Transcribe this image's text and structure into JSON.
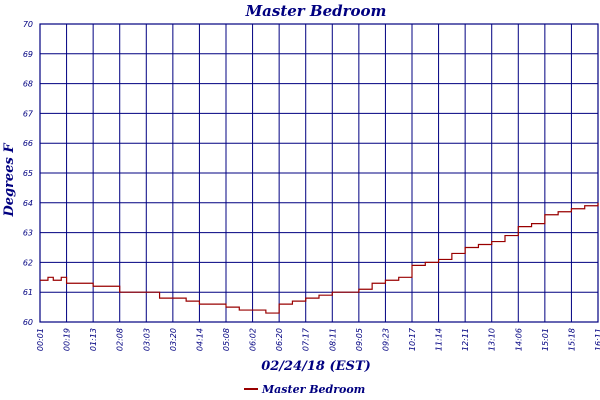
{
  "chart_data": {
    "type": "line",
    "title": "Master Bedroom",
    "xlabel": "02/24/18 (EST)",
    "ylabel": "Degrees F",
    "ylim": [
      60,
      70
    ],
    "yticks": [
      60,
      61,
      62,
      63,
      64,
      65,
      66,
      67,
      68,
      69,
      70
    ],
    "xticks": [
      "00:01",
      "00:19",
      "01:13",
      "02:08",
      "03:03",
      "03:20",
      "04:14",
      "05:08",
      "06:02",
      "06:20",
      "07:17",
      "08:11",
      "09:05",
      "09:23",
      "10:17",
      "11:14",
      "12:11",
      "13:10",
      "14:06",
      "15:01",
      "15:18",
      "16:11"
    ],
    "grid": true,
    "legend_position": "bottom-center",
    "series": [
      {
        "name": "Master Bedroom",
        "color": "#990000",
        "x": [
          0,
          0.3,
          0.5,
          0.8,
          1.0,
          1.5,
          2.0,
          2.5,
          3.0,
          3.5,
          4.0,
          4.5,
          5.0,
          5.5,
          6.0,
          6.5,
          7.0,
          7.5,
          8.0,
          8.5,
          9.0,
          9.5,
          10.0,
          10.5,
          11.0,
          11.5,
          12.0,
          12.5,
          13.0,
          13.5,
          14.0,
          14.5,
          15.0,
          15.5,
          16.0,
          16.5,
          17.0,
          17.5,
          18.0,
          18.5,
          19.0,
          19.5,
          20.0,
          20.5,
          21.0
        ],
        "y": [
          61.4,
          61.5,
          61.4,
          61.5,
          61.3,
          61.3,
          61.2,
          61.2,
          61.0,
          61.0,
          61.0,
          60.8,
          60.8,
          60.7,
          60.6,
          60.6,
          60.5,
          60.4,
          60.4,
          60.3,
          60.6,
          60.7,
          60.8,
          60.9,
          61.0,
          61.0,
          61.1,
          61.3,
          61.4,
          61.5,
          61.9,
          62.0,
          62.1,
          62.3,
          62.5,
          62.6,
          62.7,
          62.9,
          63.2,
          63.3,
          63.6,
          63.7,
          63.8,
          63.9,
          64.0
        ]
      }
    ]
  }
}
